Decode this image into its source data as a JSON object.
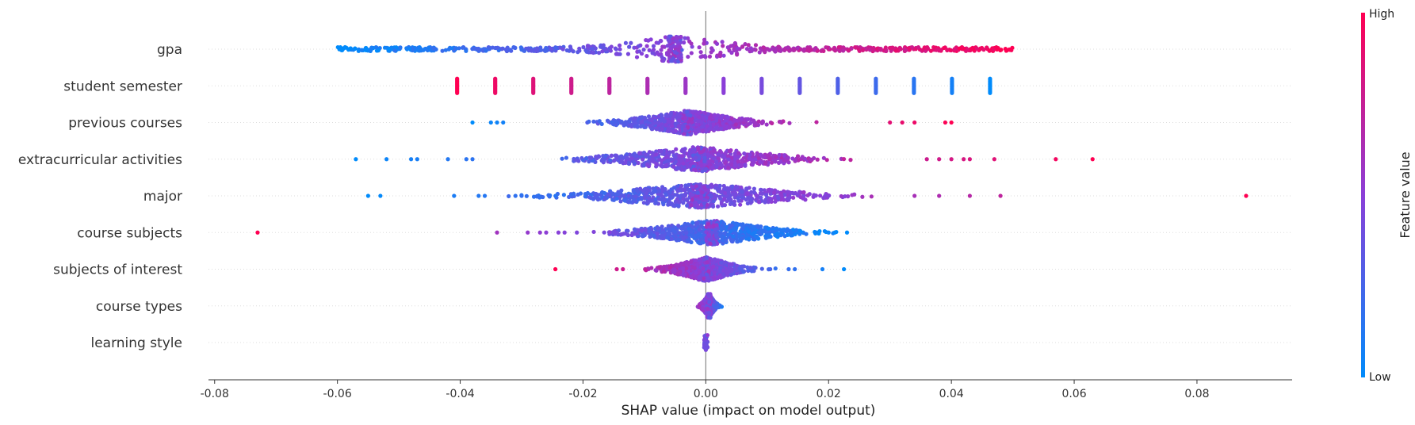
{
  "chart_data": {
    "type": "scatter",
    "subtype": "shap-beeswarm",
    "title": "",
    "xlabel": "SHAP value (impact on model output)",
    "ylabel": "",
    "xlim": [
      -0.081,
      0.0955
    ],
    "xticks": [
      "-0.08",
      "-0.06",
      "-0.04",
      "-0.02",
      "0.00",
      "0.02",
      "0.04",
      "0.06",
      "0.08"
    ],
    "xtick_values": [
      -0.08,
      -0.06,
      -0.04,
      -0.02,
      0.0,
      0.02,
      0.04,
      0.06,
      0.08
    ],
    "zero_line": true,
    "grid": false,
    "colorbar": {
      "label": "Feature value",
      "high_label": "High",
      "low_label": "Low",
      "colors": [
        "#008bfb",
        "#ff0052"
      ]
    },
    "features": [
      {
        "name": "gpa",
        "pattern": "spread",
        "min": -0.06,
        "max": 0.05,
        "low_side": "negative",
        "cluster": -0.005,
        "extra": []
      },
      {
        "name": "student semester",
        "pattern": "stripes",
        "stripes": [
          -0.0405,
          -0.0343,
          -0.0281,
          -0.0219,
          -0.0157,
          -0.0095,
          -0.0033,
          0.0029,
          0.0091,
          0.0153,
          0.0215,
          0.0277,
          0.0339,
          0.0401,
          0.0463
        ]
      },
      {
        "name": "previous courses",
        "pattern": "spread",
        "min": -0.038,
        "max": 0.04,
        "low_side": "negative",
        "cluster": -0.003,
        "extra": [
          -0.038,
          -0.035,
          -0.034,
          -0.033,
          0.03,
          0.032,
          0.034,
          0.039,
          0.04
        ]
      },
      {
        "name": "extracurricular activities",
        "pattern": "spread",
        "min": -0.057,
        "max": 0.063,
        "low_side": "negative",
        "cluster": -0.001,
        "extra": [
          -0.057,
          -0.052,
          -0.048,
          -0.047,
          -0.042,
          -0.039,
          -0.038,
          0.036,
          0.038,
          0.04,
          0.042,
          0.043,
          0.047,
          0.057,
          0.063
        ]
      },
      {
        "name": "major",
        "pattern": "spread",
        "min": -0.055,
        "max": 0.088,
        "low_side": "negative",
        "cluster": -0.001,
        "extra": [
          -0.055,
          -0.053,
          -0.041,
          -0.037,
          -0.036,
          -0.031,
          -0.03,
          0.034,
          0.038,
          0.043,
          0.048,
          0.088
        ]
      },
      {
        "name": "course subjects",
        "pattern": "spread",
        "min": -0.073,
        "max": 0.023,
        "low_side": "positive",
        "cluster": 0.001,
        "extra": [
          -0.073,
          -0.034,
          -0.029,
          -0.027,
          -0.026,
          -0.024,
          -0.023,
          -0.021,
          0.02,
          0.021,
          0.023
        ]
      },
      {
        "name": "subjects of interest",
        "pattern": "spread",
        "min": -0.0245,
        "max": 0.0225,
        "low_side": "positive",
        "cluster": 0.0,
        "extra": [
          -0.0245,
          -0.0145,
          -0.0135,
          0.0105,
          0.0135,
          0.0145,
          0.019,
          0.0225
        ]
      },
      {
        "name": "course types",
        "pattern": "spread",
        "min": -0.0045,
        "max": 0.004,
        "low_side": "positive",
        "cluster": 0.0005,
        "extra": []
      },
      {
        "name": "learning style",
        "pattern": "spread",
        "min": -0.0003,
        "max": 0.0003,
        "low_side": "positive",
        "cluster": 0.0,
        "extra": []
      }
    ]
  }
}
